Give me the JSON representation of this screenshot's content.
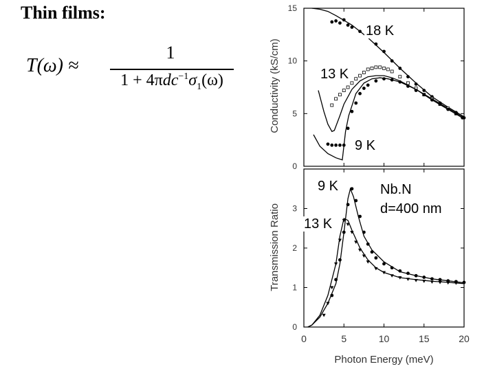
{
  "slide": {
    "title": "Thin films:"
  },
  "formula": {
    "lhs": "T(ω) ≈",
    "numerator": "1",
    "denominator_prefix": "1 + 4π",
    "denominator_vars": "dc",
    "denominator_exp": "−1",
    "denominator_sigma": "σ",
    "denominator_sub": "1",
    "denominator_suffix": "(ω)"
  },
  "chart_data": [
    {
      "type": "line",
      "ylabel": "Conductivity (kS/cm)",
      "xlim": [
        0,
        20
      ],
      "ylim": [
        0,
        15
      ],
      "yticks": [
        "0",
        "5",
        "10",
        "15"
      ],
      "grid": false,
      "annotations": [
        "18 K",
        "13 K",
        "9 K"
      ],
      "series": [
        {
          "name": "18 K",
          "style": "line",
          "x": [
            1,
            2,
            3,
            4,
            6,
            8,
            10,
            12,
            14,
            16,
            18,
            20
          ],
          "y": [
            15.0,
            14.9,
            14.7,
            14.3,
            13.4,
            12.2,
            10.8,
            9.3,
            7.9,
            6.6,
            5.6,
            4.7
          ]
        },
        {
          "name": "18 K",
          "style": "points-filled",
          "x": [
            3.5,
            4,
            4.5,
            5,
            5.5,
            6,
            7,
            8,
            9,
            10,
            11,
            12,
            13,
            14,
            15,
            16,
            17,
            18,
            19,
            19.8
          ],
          "y": [
            13.7,
            13.8,
            13.6,
            13.9,
            13.4,
            13.2,
            12.8,
            12.3,
            11.6,
            10.9,
            10.0,
            9.3,
            8.5,
            7.8,
            7.2,
            6.6,
            6.0,
            5.5,
            5.1,
            4.6
          ]
        },
        {
          "name": "13 K",
          "style": "line",
          "x": [
            1.8,
            2.5,
            3,
            3.5,
            3.8,
            4.5,
            5,
            6,
            7,
            8,
            9,
            10,
            11,
            12,
            13,
            14,
            16,
            18,
            20
          ],
          "y": [
            7.2,
            5.2,
            4.0,
            3.3,
            3.4,
            4.8,
            5.9,
            7.3,
            8.1,
            8.5,
            8.6,
            8.6,
            8.4,
            8.1,
            7.7,
            7.3,
            6.4,
            5.5,
            4.6
          ]
        },
        {
          "name": "13 K",
          "style": "points-open",
          "x": [
            3.5,
            4,
            4.5,
            5,
            5.5,
            6,
            6.5,
            7,
            7.5,
            8,
            8.5,
            9,
            9.5,
            10,
            10.5,
            11,
            12,
            13,
            14,
            15,
            16,
            17,
            18,
            19
          ],
          "y": [
            5.8,
            6.4,
            6.8,
            7.2,
            7.5,
            7.9,
            8.3,
            8.6,
            8.9,
            9.2,
            9.3,
            9.4,
            9.4,
            9.3,
            9.2,
            9.0,
            8.5,
            7.9,
            7.4,
            6.8,
            6.4,
            5.9,
            5.5,
            5.0
          ]
        },
        {
          "name": "9 K",
          "style": "line",
          "x": [
            1.2,
            2,
            3,
            4,
            4.8,
            5.2,
            5.6,
            6.5,
            7.5,
            8.5,
            9.5,
            10.5,
            12,
            14,
            16,
            18,
            20
          ],
          "y": [
            3.0,
            1.9,
            1.2,
            0.8,
            0.6,
            3.3,
            4.8,
            6.9,
            7.9,
            8.3,
            8.4,
            8.3,
            8.0,
            7.3,
            6.3,
            5.4,
            4.5
          ]
        },
        {
          "name": "9 K",
          "style": "points-filled",
          "x": [
            3,
            3.5,
            4,
            4.5,
            5,
            5.5,
            6,
            6.5,
            7,
            7.5,
            8,
            9,
            10,
            11,
            12,
            13,
            14,
            15,
            16,
            17,
            18,
            19,
            20
          ],
          "y": [
            2.1,
            2.0,
            2.0,
            2.0,
            2.0,
            3.6,
            5.2,
            6.0,
            6.9,
            7.4,
            7.7,
            8.1,
            8.3,
            8.2,
            8.0,
            7.6,
            7.2,
            6.8,
            6.3,
            5.9,
            5.4,
            5.0,
            4.6
          ]
        }
      ]
    },
    {
      "type": "line",
      "xlabel": "Photon Energy (meV)",
      "ylabel": "Transmission Ratio",
      "xlim": [
        0,
        20
      ],
      "ylim": [
        0,
        4
      ],
      "xticks": [
        "0",
        "5",
        "10",
        "15",
        "20"
      ],
      "yticks": [
        "0",
        "1",
        "2",
        "3"
      ],
      "grid": false,
      "annotations": [
        "9 K",
        "13 K",
        "Nb.N",
        "d=400 nm"
      ],
      "series": [
        {
          "name": "9 K",
          "style": "line",
          "x": [
            0.5,
            1,
            2,
            3,
            4,
            4.5,
            5,
            5.5,
            5.8,
            6.2,
            6.8,
            7.5,
            8.5,
            10,
            12,
            14,
            16,
            18,
            20
          ],
          "y": [
            0.0,
            0.05,
            0.25,
            0.6,
            1.1,
            1.6,
            2.4,
            3.25,
            3.5,
            3.3,
            2.8,
            2.3,
            1.95,
            1.65,
            1.4,
            1.3,
            1.22,
            1.17,
            1.12
          ]
        },
        {
          "name": "9 K",
          "style": "points-filled",
          "x": [
            3.5,
            4,
            4.5,
            5,
            5.5,
            6,
            6.5,
            7,
            7.5,
            8,
            8.5,
            9,
            10,
            11,
            12,
            13,
            14,
            15,
            16,
            17,
            18,
            19,
            20
          ],
          "y": [
            0.8,
            1.2,
            1.7,
            2.4,
            3.1,
            3.5,
            3.2,
            2.8,
            2.4,
            2.1,
            1.9,
            1.75,
            1.6,
            1.5,
            1.42,
            1.36,
            1.3,
            1.26,
            1.22,
            1.2,
            1.17,
            1.15,
            1.13
          ]
        },
        {
          "name": "13 K",
          "style": "line",
          "x": [
            0.5,
            1,
            2,
            3,
            4,
            4.5,
            5,
            5.5,
            6,
            7,
            8,
            9,
            10,
            12,
            14,
            16,
            18,
            20
          ],
          "y": [
            0.0,
            0.05,
            0.3,
            0.8,
            1.6,
            2.3,
            2.75,
            2.7,
            2.45,
            2.0,
            1.7,
            1.5,
            1.38,
            1.25,
            1.2,
            1.16,
            1.13,
            1.1
          ]
        },
        {
          "name": "13 K",
          "style": "points-triangle",
          "x": [
            2.5,
            3,
            3.5,
            4,
            4.5,
            5,
            5.5,
            6,
            6.5,
            7,
            7.5,
            8,
            9,
            10,
            11,
            12,
            13,
            14,
            15,
            16,
            17,
            18,
            19
          ],
          "y": [
            0.3,
            0.6,
            1.0,
            1.6,
            2.2,
            2.7,
            2.6,
            2.4,
            2.15,
            1.95,
            1.8,
            1.65,
            1.48,
            1.38,
            1.3,
            1.25,
            1.21,
            1.18,
            1.16,
            1.14,
            1.13,
            1.12,
            1.11
          ]
        }
      ]
    }
  ]
}
